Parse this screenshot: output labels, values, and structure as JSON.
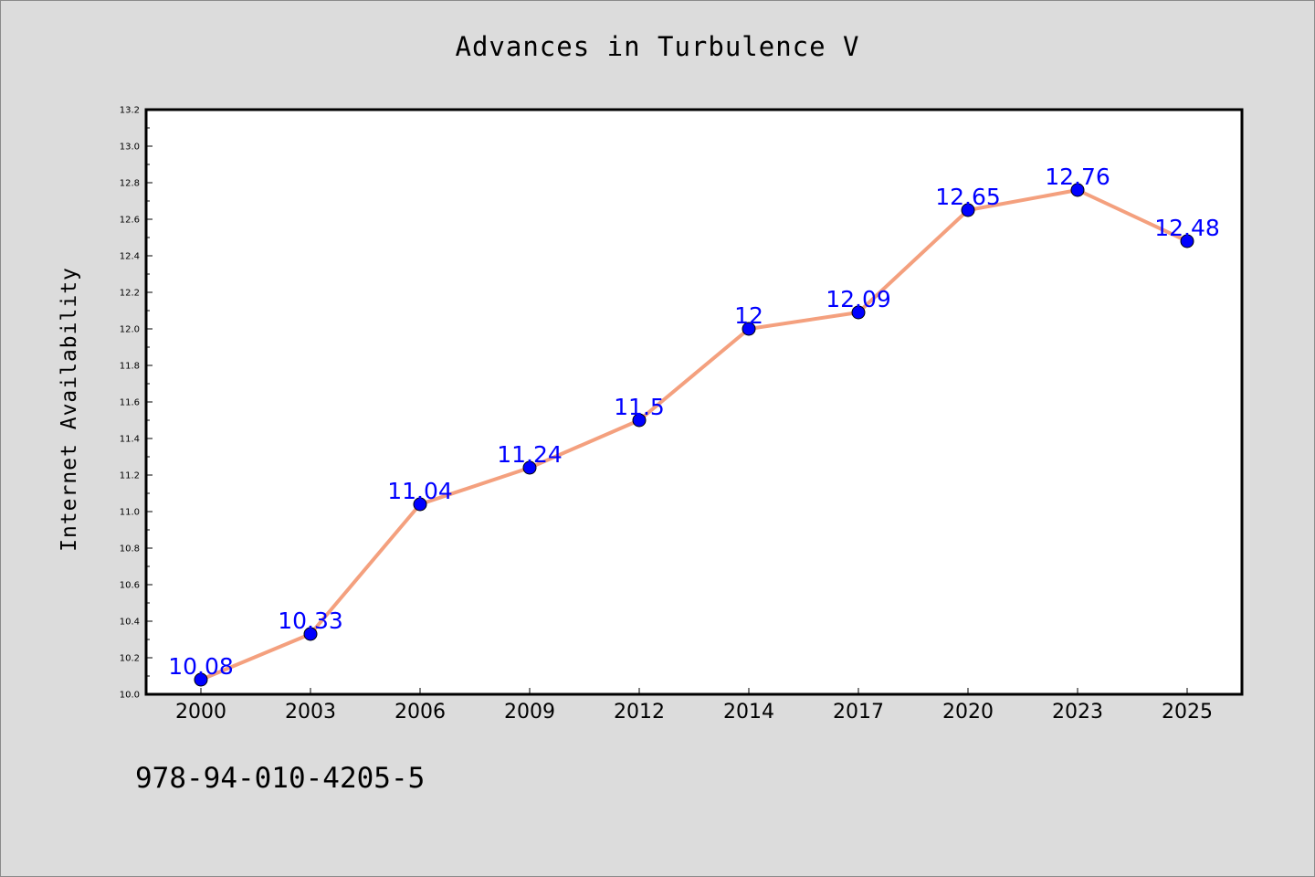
{
  "chart_data": {
    "type": "line",
    "title": "Advances in Turbulence V",
    "xlabel": "",
    "ylabel": "Internet Availability",
    "categories": [
      "2000",
      "2003",
      "2006",
      "2009",
      "2012",
      "2014",
      "2017",
      "2020",
      "2023",
      "2025"
    ],
    "series": [
      {
        "values": [
          10.08,
          10.33,
          11.04,
          11.24,
          11.5,
          12,
          12.09,
          12.65,
          12.76,
          12.48
        ],
        "labels": [
          "10.08",
          "10.33",
          "11.04",
          "11.24",
          "11.5",
          "12",
          "12.09",
          "12.65",
          "12.76",
          "12.48"
        ],
        "line_color": "#f4a07e",
        "marker_color": "#0000ff"
      }
    ],
    "ylim": [
      10.0,
      13.2
    ],
    "yticks": [
      "10.0",
      "10.2",
      "10.4",
      "10.6",
      "10.8",
      "11.0",
      "11.2",
      "11.4",
      "11.6",
      "11.8",
      "12.0",
      "12.2",
      "12.4",
      "12.6",
      "12.8",
      "13.0",
      "13.2"
    ],
    "grid": false,
    "data_label_color": "#0000ff"
  },
  "footer": {
    "code": "978-94-010-4205-5"
  }
}
